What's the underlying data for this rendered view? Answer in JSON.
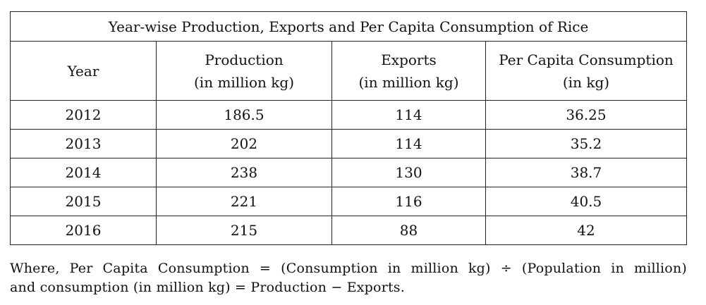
{
  "table": {
    "title": "Year-wise Production, Exports and Per Capita Consumption of Rice",
    "headers": [
      {
        "line1": "Year",
        "line2": ""
      },
      {
        "line1": "Production",
        "line2": "(in million kg)"
      },
      {
        "line1": "Exports",
        "line2": "(in million kg)"
      },
      {
        "line1": "Per Capita Consumption",
        "line2": "(in kg)"
      }
    ],
    "rows": [
      {
        "year": "2012",
        "production": "186.5",
        "exports": "114",
        "per_capita": "36.25"
      },
      {
        "year": "2013",
        "production": "202",
        "exports": "114",
        "per_capita": "35.2"
      },
      {
        "year": "2014",
        "production": "238",
        "exports": "130",
        "per_capita": "38.7"
      },
      {
        "year": "2015",
        "production": "221",
        "exports": "116",
        "per_capita": "40.5"
      },
      {
        "year": "2016",
        "production": "215",
        "exports": "88",
        "per_capita": "42"
      }
    ]
  },
  "note": {
    "line1": "Where, Per Capita Consumption = (Consumption in million kg) ÷ (Population in million)",
    "line2": "and consumption (in million kg) = Production − Exports."
  }
}
